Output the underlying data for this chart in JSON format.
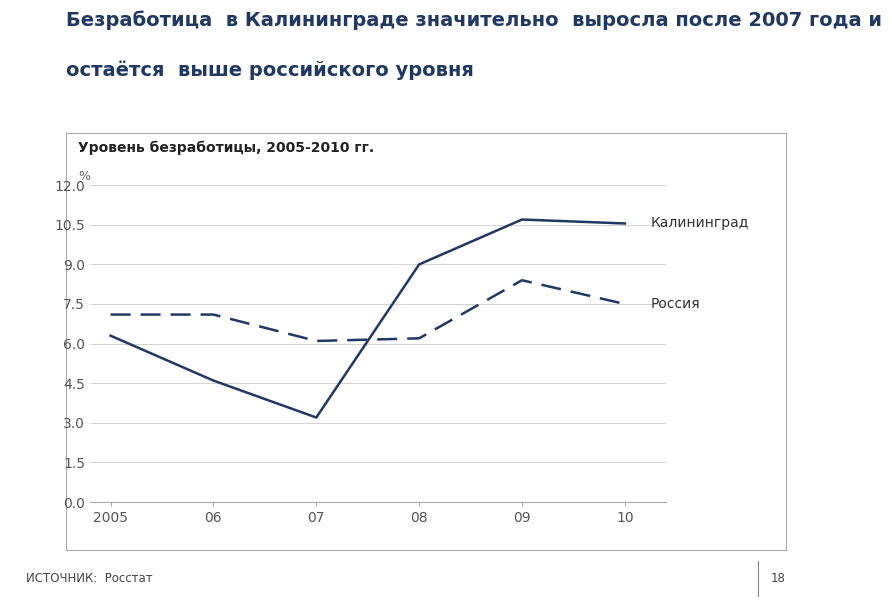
{
  "title_line1": "Безработица  в Калининграде значительно  выросла после 2007 года и",
  "title_line2": "остаётся  выше российского уровня",
  "chart_title": "Уровень безработицы, 2005-2010 гг.",
  "chart_subtitle": "%",
  "source_text": "ИСТОЧНИК:  Росстат",
  "page_number": "18",
  "x_values": [
    2005,
    2006,
    2007,
    2008,
    2009,
    2010
  ],
  "x_labels": [
    "2005",
    "06",
    "07",
    "08",
    "09",
    "10"
  ],
  "kaliningrad_values": [
    6.3,
    4.6,
    3.2,
    9.0,
    10.7,
    10.55
  ],
  "russia_values": [
    7.1,
    7.1,
    6.1,
    6.2,
    8.4,
    7.5
  ],
  "line_color": "#1f3864",
  "ylim": [
    0,
    12.5
  ],
  "yticks": [
    0,
    1.5,
    3.0,
    4.5,
    6.0,
    7.5,
    9.0,
    10.5,
    12.0
  ],
  "label_kaliningrad": "Калининград",
  "label_russia": "Россия",
  "bg_white": "#ffffff",
  "bg_light_blue": "#d6e4f0",
  "title_color": "#1f3864",
  "footer_bg": "#ccdaea",
  "box_edge_color": "#aaaaaa",
  "grid_color": "#cccccc",
  "tick_color": "#555555",
  "title_fontsize": 14,
  "chart_title_fontsize": 10,
  "label_fontsize": 10,
  "tick_fontsize": 10
}
